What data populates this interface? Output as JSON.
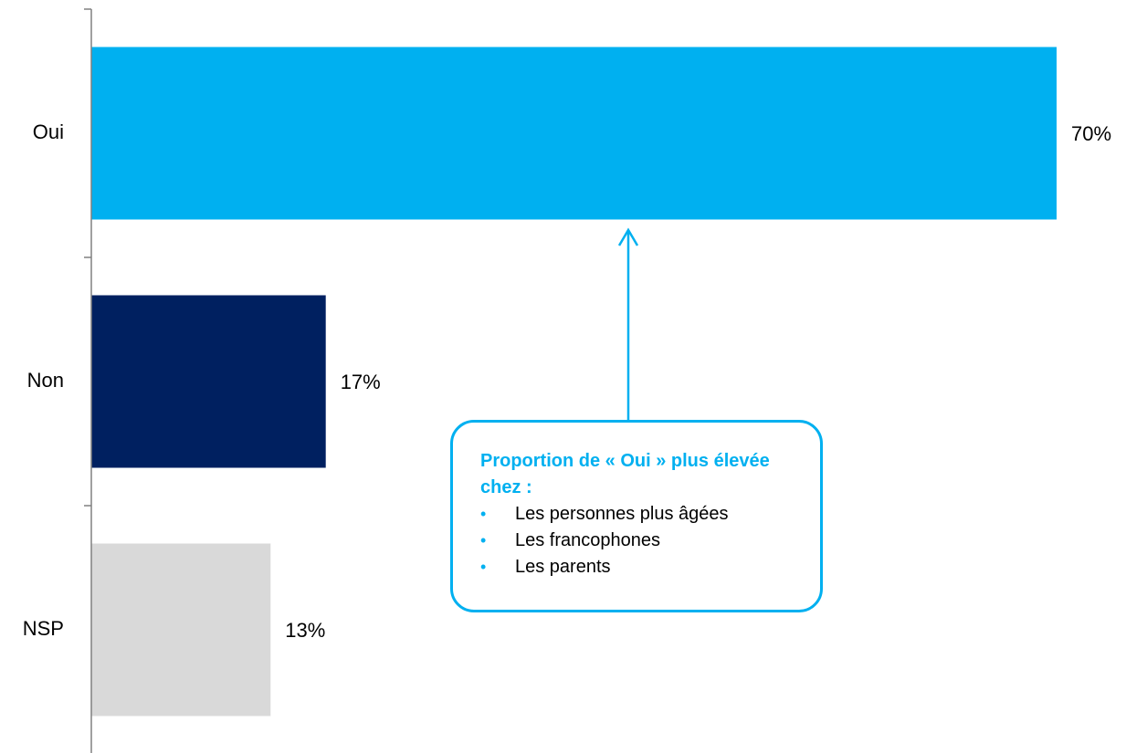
{
  "chart_data": {
    "type": "bar",
    "orientation": "horizontal",
    "categories": [
      "Oui",
      "Non",
      "NSP"
    ],
    "values": [
      70,
      17,
      13
    ],
    "value_labels": [
      "70%",
      "17%",
      "13%"
    ],
    "colors": [
      "#00b0f0",
      "#002060",
      "#d9d9d9"
    ],
    "xlim": [
      0,
      70
    ],
    "grid": false,
    "legend": "none"
  },
  "colors": {
    "accent": "#00b0f0",
    "axis": "#808080",
    "text": "#000000"
  },
  "callout": {
    "title": "Proportion de « Oui » plus élevée chez :",
    "items": [
      "Les personnes plus âgées",
      "Les francophones",
      "Les parents"
    ],
    "bullet": "•",
    "arrow_target": "Oui"
  }
}
